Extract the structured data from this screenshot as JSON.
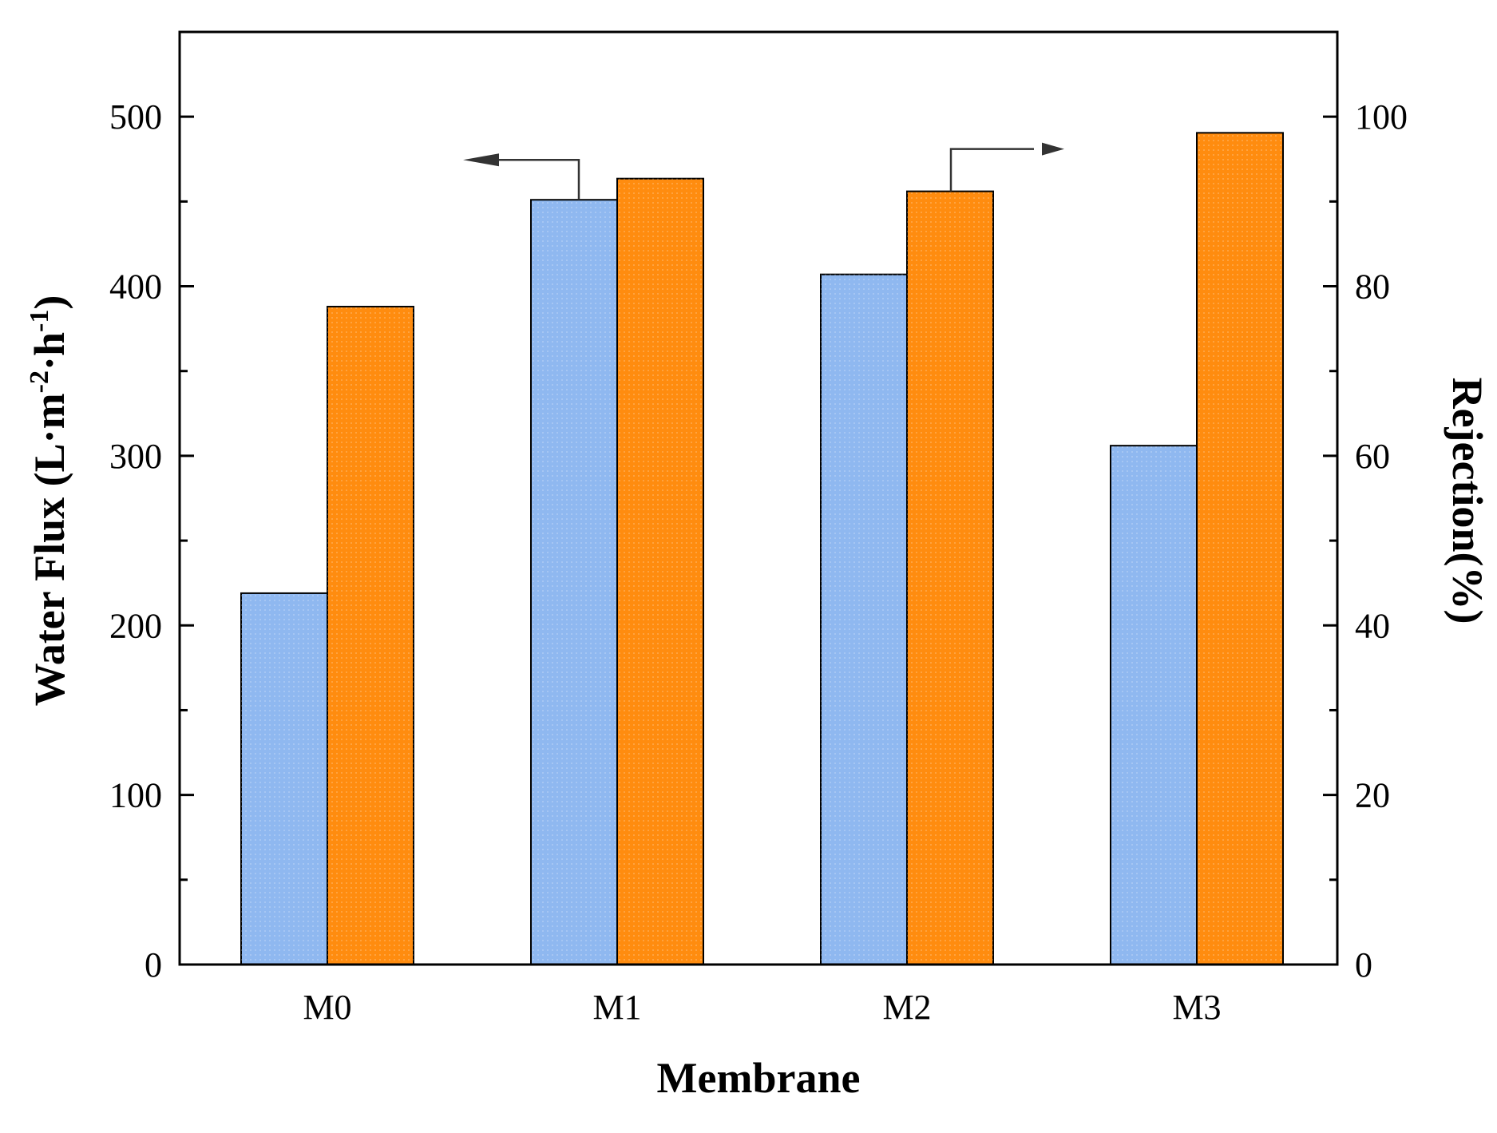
{
  "chart_data": {
    "type": "bar",
    "categories": [
      "M0",
      "M1",
      "M2",
      "M3"
    ],
    "xlabel": "Membrane",
    "ylabel": {
      "main": "Water Flux (L·m",
      "sup1": "-2",
      "mid": "·h",
      "sup2": "-1",
      "end": ")"
    },
    "y2label": "Rejection(%)",
    "ylim": [
      0,
      550
    ],
    "y2lim": [
      0,
      110
    ],
    "yticks": [
      "0",
      "100",
      "200",
      "300",
      "400",
      "500"
    ],
    "y2ticks": [
      "0",
      "20",
      "40",
      "60",
      "80",
      "100"
    ],
    "series": [
      {
        "axis": "left",
        "values": [
          219,
          451,
          407,
          306
        ]
      },
      {
        "axis": "right",
        "values": [
          77.6,
          92.7,
          91.2,
          98.1
        ]
      }
    ],
    "annotations": [
      {
        "direction": "left",
        "target": "left-axis",
        "attached_to": "M1 water flux bar"
      },
      {
        "direction": "right",
        "target": "right-axis",
        "attached_to": "M2 rejection bar"
      }
    ],
    "grid": false,
    "colors": {
      "flux": "#8fb8f0",
      "rejection": "#ff8c0f",
      "bar_edge": "#000000",
      "axis": "#000000",
      "arrow": "#333333"
    }
  }
}
